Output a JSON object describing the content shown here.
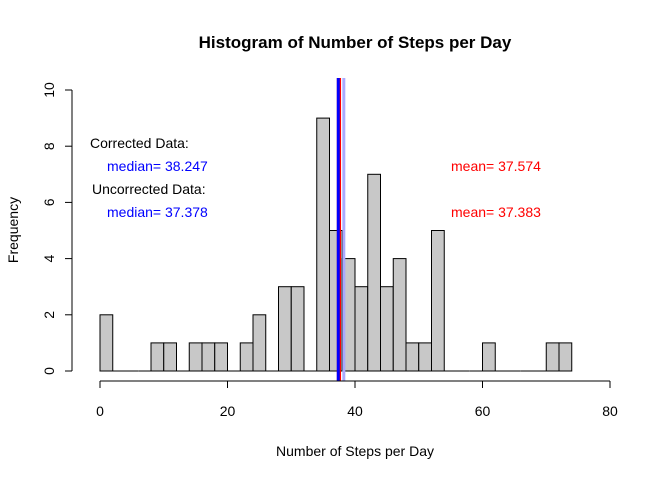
{
  "chart_data": {
    "type": "bar",
    "title": "Histogram of Number of Steps per Day",
    "xlabel": "Number of Steps per Day",
    "ylabel": "Frequency",
    "xlim": [
      0,
      80
    ],
    "ylim": [
      0,
      10
    ],
    "x_ticks": [
      0,
      20,
      40,
      60,
      80
    ],
    "y_ticks": [
      0,
      2,
      4,
      6,
      8,
      10
    ],
    "bin_width": 2,
    "bin_starts": [
      0,
      2,
      4,
      6,
      8,
      10,
      12,
      14,
      16,
      18,
      20,
      22,
      24,
      26,
      28,
      30,
      32,
      34,
      36,
      38,
      40,
      42,
      44,
      46,
      48,
      50,
      52,
      54,
      56,
      58,
      60,
      62,
      64,
      66,
      68,
      70,
      72
    ],
    "values": [
      2,
      0,
      0,
      0,
      1,
      1,
      0,
      1,
      1,
      1,
      0,
      1,
      2,
      0,
      3,
      3,
      0,
      9,
      5,
      4,
      3,
      7,
      3,
      4,
      1,
      1,
      5,
      0,
      0,
      0,
      1,
      0,
      0,
      0,
      0,
      1,
      1
    ],
    "bar_fill": "#c8c8c8",
    "bar_stroke": "#000000",
    "grid": false,
    "legend": "none",
    "vlines": [
      {
        "x": 37.383,
        "color": "#ff0000"
      },
      {
        "x": 37.574,
        "color": "#ff0000"
      },
      {
        "x": 37.378,
        "color": "#0000ff"
      },
      {
        "x": 38.247,
        "color": "#aaaaff"
      }
    ],
    "annotations": {
      "corrected_label": "Corrected Data:",
      "corrected_median": "median= 38.247",
      "corrected_mean": "mean= 37.574",
      "uncorrected_label": "Uncorrected Data:",
      "uncorrected_median": "median= 37.378",
      "uncorrected_mean": "mean= 37.383",
      "label_color": "#000000",
      "median_color": "#0000ff",
      "mean_color": "#ff0000"
    }
  }
}
